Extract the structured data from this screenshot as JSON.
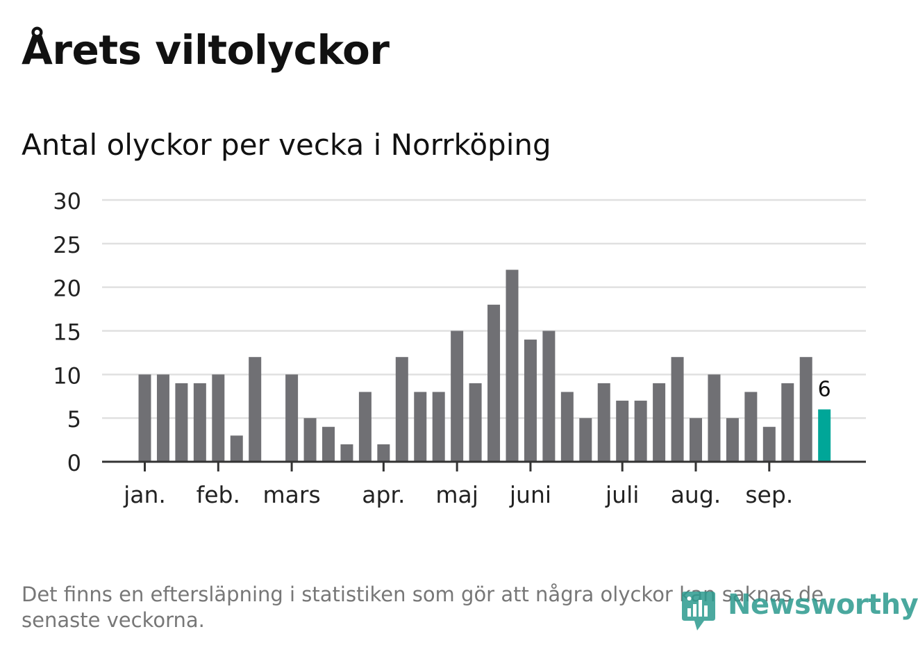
{
  "header": {
    "title": "Årets viltolyckor",
    "subtitle": "Antal olyckor per vecka i Norrköping"
  },
  "footer": {
    "note": "Det finns en eftersläpning i statistiken som gör att några olyckor kan saknas de senaste veckorna.",
    "brand": "Newsworthy"
  },
  "colors": {
    "bar": "#707074",
    "highlight": "#00a698",
    "grid": "#e0e0e0",
    "axis": "#333333",
    "brand": "#2b9a8e"
  },
  "chart_data": {
    "type": "bar",
    "x": [
      1,
      2,
      3,
      4,
      5,
      6,
      7,
      8,
      9,
      10,
      11,
      12,
      13,
      14,
      15,
      16,
      17,
      18,
      19,
      20,
      21,
      22,
      23,
      24,
      25,
      26,
      27,
      28,
      29,
      30,
      31,
      32,
      33,
      34,
      35,
      36,
      37,
      38
    ],
    "values": [
      10,
      10,
      9,
      9,
      10,
      3,
      12,
      0,
      10,
      5,
      4,
      2,
      8,
      2,
      12,
      8,
      8,
      15,
      9,
      18,
      22,
      14,
      15,
      8,
      5,
      9,
      7,
      7,
      9,
      12,
      5,
      10,
      5,
      8,
      4,
      9,
      12,
      6
    ],
    "highlight_index": 37,
    "highlight_label": "6",
    "ylim": [
      0,
      30
    ],
    "yticks": [
      "0",
      "5",
      "10",
      "15",
      "20",
      "25",
      "30"
    ],
    "xticks": [
      {
        "label": "jan.",
        "week": 1
      },
      {
        "label": "feb.",
        "week": 5
      },
      {
        "label": "mars",
        "week": 9
      },
      {
        "label": "apr.",
        "week": 14
      },
      {
        "label": "maj",
        "week": 18
      },
      {
        "label": "juni",
        "week": 22
      },
      {
        "label": "juli",
        "week": 27
      },
      {
        "label": "aug.",
        "week": 31
      },
      {
        "label": "sep.",
        "week": 35
      }
    ],
    "grid": true,
    "legend": "none"
  }
}
